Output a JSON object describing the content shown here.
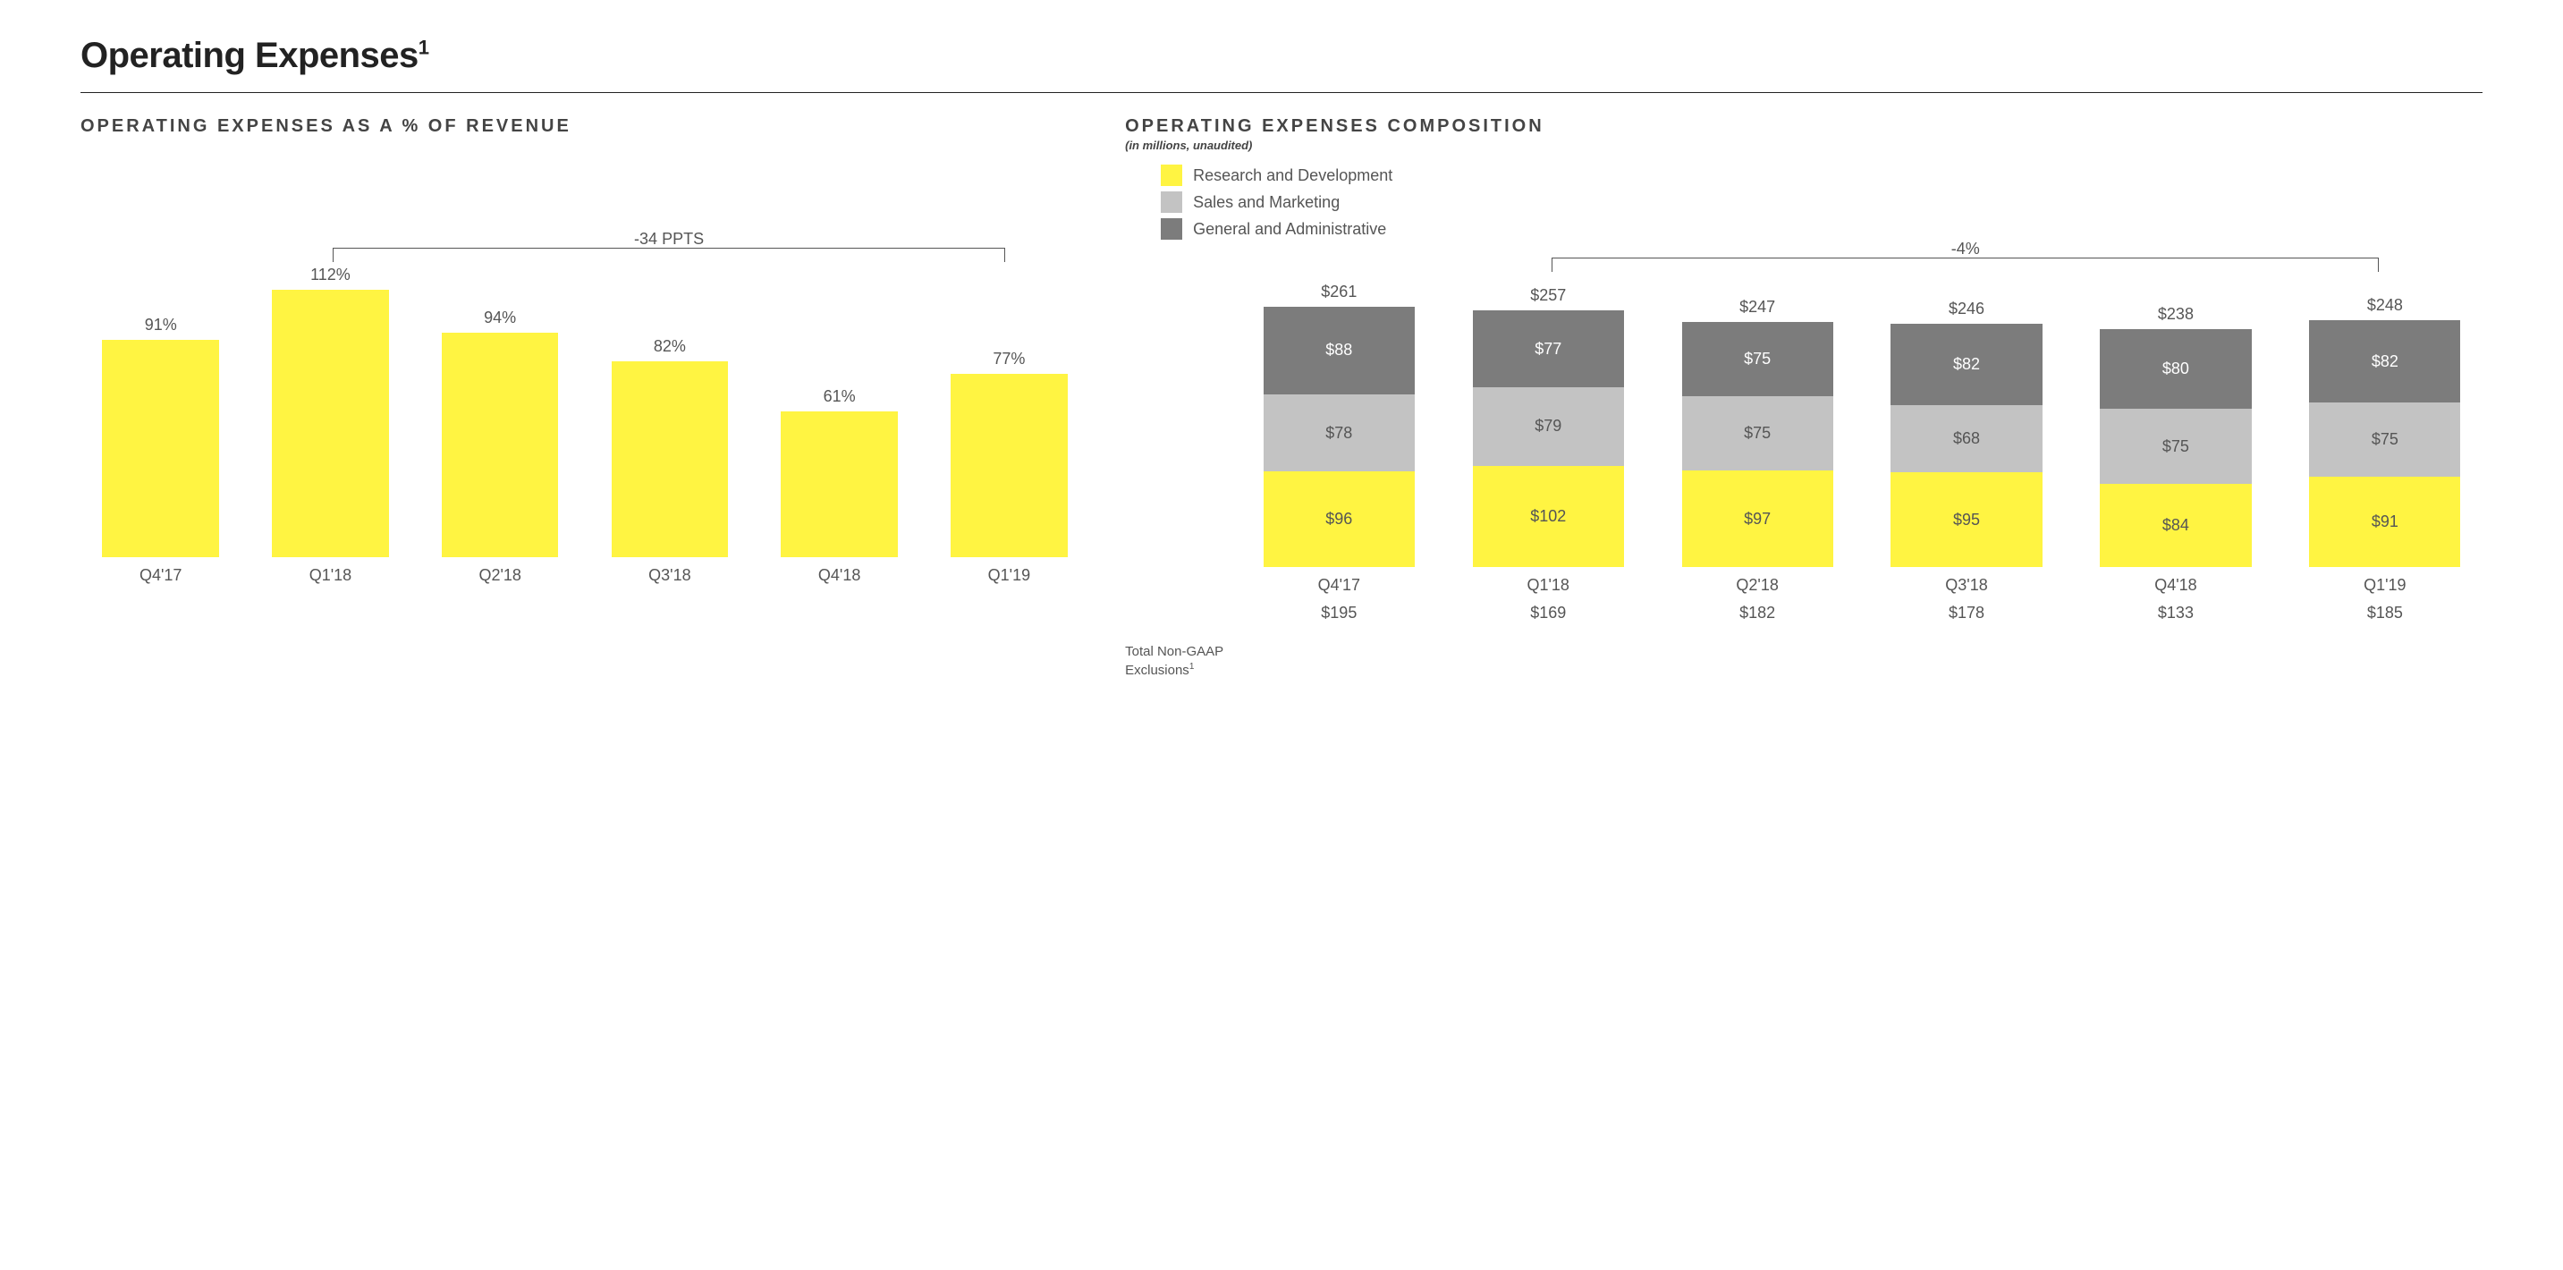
{
  "title": "Operating Expenses",
  "title_sup": "1",
  "colors": {
    "yellow": "#fff442",
    "light_gray": "#c3c3c3",
    "dark_gray": "#7c7c7c",
    "text": "#555555",
    "rule": "#222222",
    "bg": "#ffffff"
  },
  "left_chart": {
    "title": "OPERATING EXPENSES AS A % OF REVENUE",
    "type": "bar",
    "categories": [
      "Q4'17",
      "Q1'18",
      "Q2'18",
      "Q3'18",
      "Q4'18",
      "Q1'19"
    ],
    "values": [
      91,
      112,
      94,
      82,
      61,
      77
    ],
    "value_labels": [
      "91%",
      "112%",
      "94%",
      "82%",
      "61%",
      "77%"
    ],
    "bar_color": "#fff442",
    "max_scale": 120,
    "bracket": {
      "from_index": 1,
      "to_index": 5,
      "label": "-34 PPTS"
    },
    "label_fontsize": 18
  },
  "right_chart": {
    "title": "OPERATING EXPENSES COMPOSITION",
    "subtitle": "(in millions, unaudited)",
    "type": "stacked-bar",
    "categories": [
      "Q4'17",
      "Q1'18",
      "Q2'18",
      "Q3'18",
      "Q4'18",
      "Q1'19"
    ],
    "legend": [
      {
        "label": "Research and Development",
        "color": "#fff442"
      },
      {
        "label": "Sales and Marketing",
        "color": "#c3c3c3"
      },
      {
        "label": "General and Administrative",
        "color": "#7c7c7c"
      }
    ],
    "series": {
      "rd": [
        96,
        102,
        97,
        95,
        84,
        91
      ],
      "sm": [
        78,
        79,
        75,
        68,
        75,
        75
      ],
      "ga": [
        88,
        77,
        75,
        82,
        80,
        82
      ]
    },
    "totals": [
      "$261",
      "$257",
      "$247",
      "$246",
      "$238",
      "$248"
    ],
    "max_scale": 270,
    "bracket": {
      "from_index": 1,
      "to_index": 5,
      "label": "-4%"
    },
    "nongaap_label": "Total Non-GAAP Exclusions",
    "nongaap_sup": "1",
    "nongaap_values": [
      "$195",
      "$169",
      "$182",
      "$178",
      "$133",
      "$185"
    ]
  }
}
